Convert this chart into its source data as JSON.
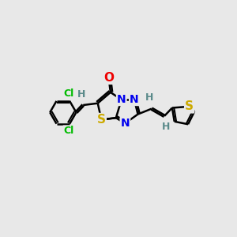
{
  "background_color": "#e8e8e8",
  "atom_colors": {
    "C": "#000000",
    "H": "#5a8a8a",
    "N": "#0000ee",
    "O": "#ee0000",
    "S": "#ccaa00",
    "Cl": "#00bb00"
  },
  "bond_color": "#000000",
  "bond_width": 1.8,
  "fig_width": 3.0,
  "fig_height": 3.0,
  "dpi": 100,
  "xlim": [
    0,
    10
  ],
  "ylim": [
    0,
    10
  ]
}
